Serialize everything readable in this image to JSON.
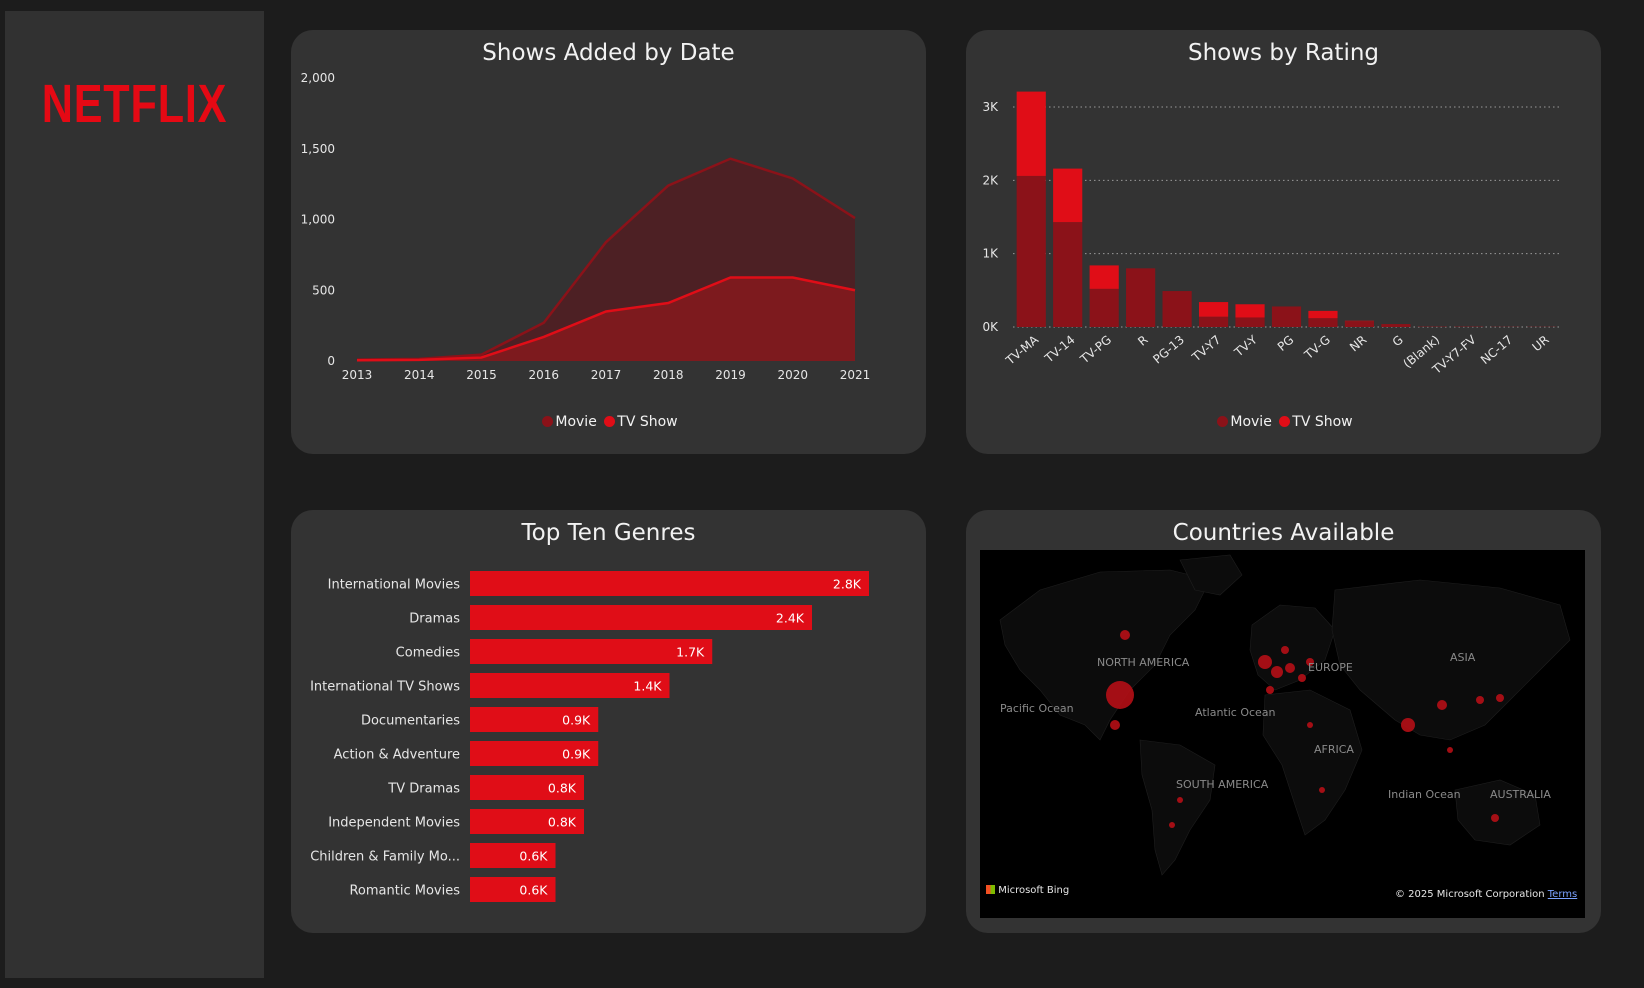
{
  "app": {
    "logo_text": "NETFLIX",
    "brand_color": "#e50914"
  },
  "colors": {
    "movie": "#8b1219",
    "tv_show": "#e00d17",
    "movie_area": "#4f2024",
    "tv_area": "#7f1a1f",
    "panel": "#333333"
  },
  "chart_data": [
    {
      "type": "area",
      "title": "Shows Added by Date",
      "x": [
        2013,
        2014,
        2015,
        2016,
        2017,
        2018,
        2019,
        2020,
        2021
      ],
      "ylim": [
        0,
        2000
      ],
      "yticks": [
        "0",
        "500",
        "1,000",
        "1,500",
        "2,000"
      ],
      "series": [
        {
          "name": "Movie",
          "values": [
            10,
            15,
            45,
            270,
            840,
            1240,
            1430,
            1290,
            1010
          ]
        },
        {
          "name": "TV Show",
          "values": [
            5,
            8,
            25,
            170,
            350,
            410,
            590,
            590,
            500
          ]
        }
      ],
      "legend": [
        "Movie",
        "TV Show"
      ],
      "legend_position": "bottom",
      "grid": false
    },
    {
      "type": "bar",
      "stacked": true,
      "title": "Shows by Rating",
      "categories": [
        "TV-MA",
        "TV-14",
        "TV-PG",
        "R",
        "PG-13",
        "TV-Y7",
        "TV-Y",
        "PG",
        "TV-G",
        "NR",
        "G",
        "(Blank)",
        "TV-Y7-FV",
        "NC-17",
        "UR"
      ],
      "ylim": [
        0,
        3300
      ],
      "yticks": [
        "0K",
        "1K",
        "2K",
        "3K"
      ],
      "series": [
        {
          "name": "Movie",
          "values": [
            2060,
            1430,
            520,
            800,
            490,
            140,
            130,
            280,
            120,
            80,
            40,
            5,
            5,
            3,
            3
          ]
        },
        {
          "name": "TV Show",
          "values": [
            1150,
            730,
            320,
            0,
            0,
            200,
            180,
            0,
            100,
            5,
            0,
            0,
            0,
            0,
            0
          ]
        }
      ],
      "legend": [
        "Movie",
        "TV Show"
      ],
      "legend_position": "bottom",
      "grid": true
    },
    {
      "type": "bar",
      "orientation": "horizontal",
      "title": "Top Ten Genres",
      "categories": [
        "International Movies",
        "Dramas",
        "Comedies",
        "International TV Shows",
        "Documentaries",
        "Action & Adventure",
        "TV Dramas",
        "Independent Movies",
        "Children & Family Mo...",
        "Romantic Movies"
      ],
      "values": [
        2.8,
        2.4,
        1.7,
        1.4,
        0.9,
        0.9,
        0.8,
        0.8,
        0.6,
        0.6
      ],
      "labels": [
        "2.8K",
        "2.4K",
        "1.7K",
        "1.4K",
        "0.9K",
        "0.9K",
        "0.8K",
        "0.8K",
        "0.6K",
        "0.6K"
      ],
      "xlim": [
        0,
        3.0
      ]
    }
  ],
  "map": {
    "title": "Countries Available",
    "labels": [
      "NORTH AMERICA",
      "EUROPE",
      "ASIA",
      "Pacific Ocean",
      "Atlantic Ocean",
      "AFRICA",
      "SOUTH AMERICA",
      "Indian Ocean",
      "AUSTRALIA"
    ],
    "provider": "Microsoft Bing",
    "copyright": "© 2025 Microsoft Corporation",
    "terms": "Terms"
  }
}
